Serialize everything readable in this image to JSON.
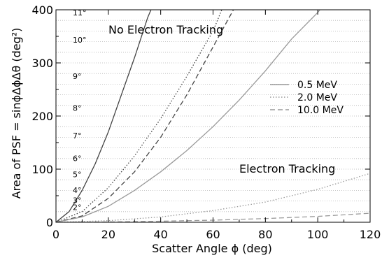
{
  "chart_data": {
    "type": "line",
    "title": "",
    "xlabel": "Scatter Angle ϕ (deg)",
    "ylabel": "Area of PSF = sinϕΔϕΔθ (deg²)",
    "xlim": [
      0,
      120
    ],
    "ylim": [
      0,
      400
    ],
    "x_ticks": [
      "0",
      "20",
      "40",
      "60",
      "80",
      "100",
      "120"
    ],
    "y_ticks": [
      "0",
      "100",
      "200",
      "300",
      "400"
    ],
    "grid": "horizontal dotted",
    "legend_position": "right",
    "annotations": {
      "no_tracking": "No Electron Tracking",
      "tracking": "Electron Tracking"
    },
    "degree_labels": [
      {
        "text": "2°",
        "y": 23
      },
      {
        "text": "3°",
        "y": 36
      },
      {
        "text": "4°",
        "y": 55
      },
      {
        "text": "5°",
        "y": 85
      },
      {
        "text": "6°",
        "y": 115
      },
      {
        "text": "7°",
        "y": 158
      },
      {
        "text": "8°",
        "y": 210
      },
      {
        "text": "9°",
        "y": 270
      },
      {
        "text": "10°",
        "y": 338
      },
      {
        "text": "11°",
        "y": 410
      }
    ],
    "series": [
      {
        "name": "0.5 MeV",
        "group": "no_tracking",
        "style": "solid",
        "color": "#444444",
        "x": [
          0,
          5,
          10,
          15,
          20,
          25,
          30,
          35,
          38
        ],
        "y": [
          0,
          20,
          60,
          110,
          170,
          240,
          310,
          385,
          420
        ]
      },
      {
        "name": "2.0 MeV",
        "group": "no_tracking",
        "style": "dotted",
        "color": "#444444",
        "x": [
          0,
          10,
          20,
          30,
          40,
          50,
          60,
          65
        ],
        "y": [
          0,
          20,
          65,
          125,
          195,
          275,
          360,
          420
        ]
      },
      {
        "name": "10.0 MeV",
        "group": "no_tracking",
        "style": "dashed",
        "color": "#444444",
        "x": [
          0,
          10,
          20,
          30,
          40,
          50,
          60,
          70
        ],
        "y": [
          0,
          12,
          45,
          95,
          160,
          240,
          330,
          420
        ]
      },
      {
        "name": "0.5 MeV",
        "group": "tracking",
        "style": "solid",
        "color": "#9a9a9a",
        "x": [
          0,
          10,
          20,
          30,
          40,
          50,
          60,
          70,
          80,
          90,
          100,
          104
        ],
        "y": [
          0,
          10,
          30,
          60,
          95,
          135,
          180,
          230,
          285,
          345,
          395,
          420
        ]
      },
      {
        "name": "2.0 MeV",
        "group": "tracking",
        "style": "dotted",
        "color": "#9a9a9a",
        "x": [
          0,
          20,
          40,
          60,
          80,
          100,
          120
        ],
        "y": [
          0,
          3,
          10,
          22,
          38,
          62,
          92
        ]
      },
      {
        "name": "10.0 MeV",
        "group": "tracking",
        "style": "dashed",
        "color": "#9a9a9a",
        "x": [
          0,
          20,
          40,
          60,
          80,
          100,
          120
        ],
        "y": [
          0,
          0.5,
          2,
          4,
          7,
          11,
          17
        ]
      }
    ],
    "legend": [
      {
        "label": "0.5 MeV",
        "style": "solid",
        "color": "#9a9a9a"
      },
      {
        "label": "2.0 MeV",
        "style": "dotted",
        "color": "#9a9a9a"
      },
      {
        "label": "10.0 MeV",
        "style": "dashed",
        "color": "#9a9a9a"
      }
    ]
  }
}
